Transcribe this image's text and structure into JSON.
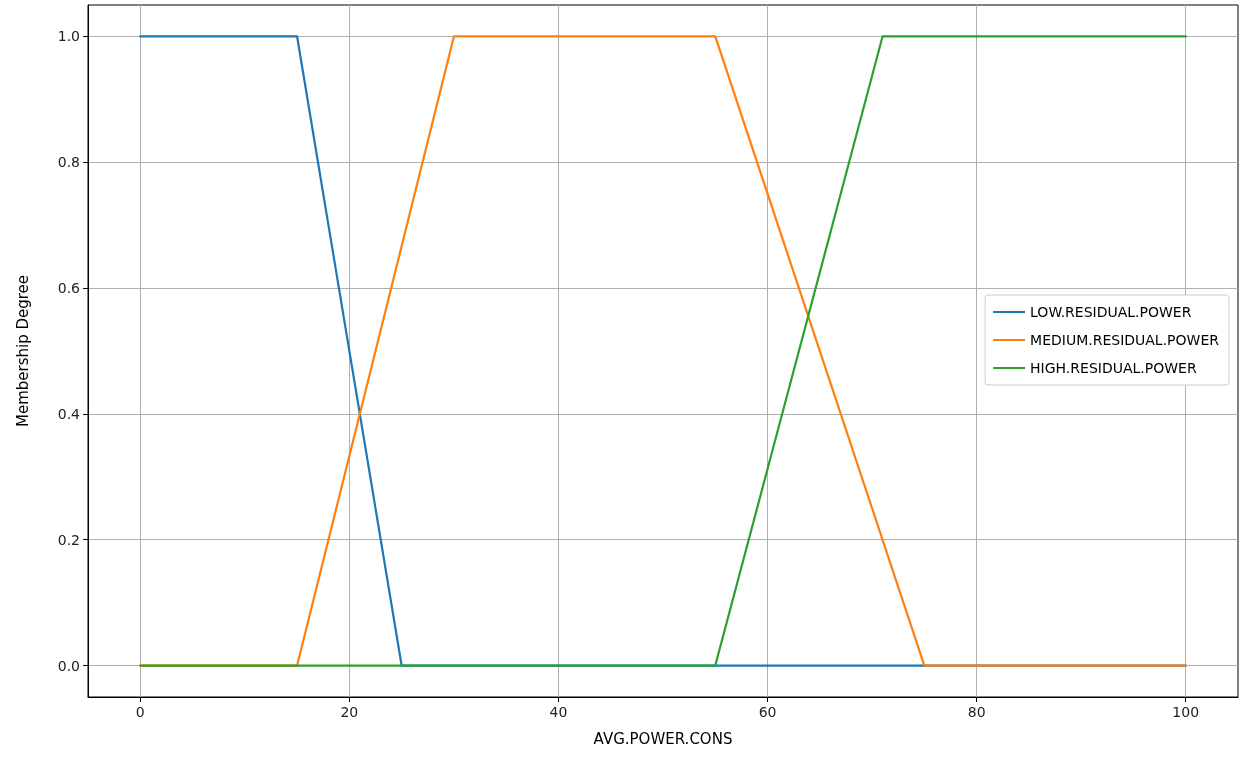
{
  "chart_data": {
    "type": "line",
    "xlabel": "AVG.POWER.CONS",
    "ylabel": "Membership Degree",
    "xlim": [
      -5,
      105
    ],
    "xticks": [
      0,
      20,
      40,
      60,
      80,
      100
    ],
    "ylim": [
      -0.05,
      1.05
    ],
    "yticks": [
      {
        "value": 0,
        "label": "0.0"
      },
      {
        "value": 0.2,
        "label": "0.2"
      },
      {
        "value": 0.4,
        "label": "0.4"
      },
      {
        "value": 0.6,
        "label": "0.6"
      },
      {
        "value": 0.8,
        "label": "0.8"
      },
      {
        "value": 1,
        "label": "1.0"
      }
    ],
    "grid": true,
    "legend": "right",
    "marker": "none",
    "line_style": "solid",
    "series": [
      {
        "name": "LOW.RESIDUAL.POWER",
        "color": "#1f77b4",
        "x": [
          0,
          15,
          25,
          100
        ],
        "values": [
          1,
          1,
          0,
          0
        ]
      },
      {
        "name": "MEDIUM.RESIDUAL.POWER",
        "color": "#ff7f0e",
        "x": [
          0,
          15,
          30,
          55,
          75,
          100
        ],
        "values": [
          0,
          0,
          1,
          1,
          0,
          0
        ]
      },
      {
        "name": "HIGH.RESIDUAL.POWER",
        "color": "#2ca02c",
        "x": [
          0,
          55,
          71,
          100
        ],
        "values": [
          0,
          0,
          1,
          1
        ]
      }
    ]
  }
}
